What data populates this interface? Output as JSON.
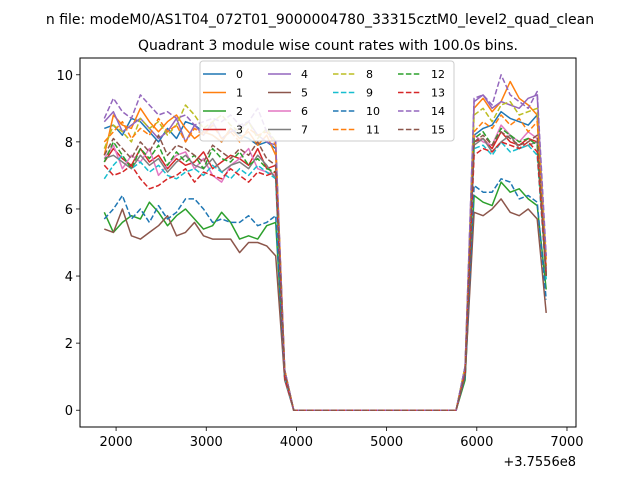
{
  "figure": {
    "suptitle": "n file: modeM0/AS1T04_072T01_9000004780_33315cztM0_level2_quad_clean",
    "title": "Quadrant 3 module wise count rates with 100.0s bins.",
    "offset_label": "+3.7556e8"
  },
  "chart_data": {
    "type": "line",
    "title": "Quadrant 3 module wise count rates with 100.0s bins.",
    "xlabel": "",
    "ylabel": "",
    "x_offset": 375560000,
    "xlim": [
      1600,
      7100
    ],
    "ylim": [
      -0.5,
      10.5
    ],
    "xticks": [
      2000,
      3000,
      4000,
      5000,
      6000,
      7000
    ],
    "yticks": [
      0,
      2,
      4,
      6,
      8,
      10
    ],
    "grid": false,
    "legend": {
      "location": "upper center",
      "columns": 4
    },
    "x": [
      1870,
      1970,
      2070,
      2170,
      2270,
      2370,
      2470,
      2570,
      2670,
      2770,
      2870,
      2970,
      3070,
      3170,
      3270,
      3370,
      3470,
      3570,
      3670,
      3770,
      3870,
      3970,
      4070,
      4170,
      4270,
      4370,
      4470,
      4570,
      4670,
      4770,
      4870,
      4970,
      5070,
      5170,
      5270,
      5370,
      5470,
      5570,
      5670,
      5770,
      5870,
      5970,
      6070,
      6170,
      6270,
      6370,
      6470,
      6570,
      6670,
      6770
    ],
    "series": [
      {
        "name": "0",
        "color": "#1f77b4",
        "dash": "solid",
        "values": [
          8.4,
          8.5,
          8.2,
          8.7,
          8.6,
          8.3,
          8.0,
          8.4,
          8.1,
          8.6,
          8.5,
          8.3,
          8.2,
          8.0,
          8.4,
          8.2,
          8.1,
          7.9,
          8.0,
          7.8,
          1.2,
          0,
          0,
          0,
          0,
          0,
          0,
          0,
          0,
          0,
          0,
          0,
          0,
          0,
          0,
          0,
          0,
          0,
          0,
          0,
          1.3,
          8.2,
          8.4,
          8.5,
          8.9,
          8.7,
          8.6,
          8.5,
          8.8,
          4.0
        ]
      },
      {
        "name": "1",
        "color": "#ff7f0e",
        "dash": "solid",
        "values": [
          7.6,
          8.8,
          8.5,
          8.4,
          9.0,
          8.6,
          8.3,
          8.6,
          8.8,
          8.4,
          8.1,
          8.3,
          8.2,
          8.0,
          8.4,
          8.1,
          8.3,
          7.9,
          8.2,
          7.6,
          1.1,
          0,
          0,
          0,
          0,
          0,
          0,
          0,
          0,
          0,
          0,
          0,
          0,
          0,
          0,
          0,
          0,
          0,
          0,
          0,
          1.2,
          9.0,
          9.3,
          8.9,
          9.2,
          9.8,
          9.3,
          9.1,
          8.8,
          4.5
        ]
      },
      {
        "name": "2",
        "color": "#2ca02c",
        "dash": "solid",
        "values": [
          5.9,
          5.3,
          5.6,
          5.8,
          5.7,
          6.2,
          5.9,
          5.5,
          5.8,
          6.0,
          5.7,
          5.4,
          5.5,
          5.9,
          5.6,
          5.1,
          5.2,
          5.1,
          5.5,
          5.6,
          1.0,
          0,
          0,
          0,
          0,
          0,
          0,
          0,
          0,
          0,
          0,
          0,
          0,
          0,
          0,
          0,
          0,
          0,
          0,
          0,
          0.9,
          6.4,
          6.2,
          6.1,
          6.8,
          6.5,
          6.6,
          6.3,
          6.1,
          3.6
        ]
      },
      {
        "name": "3",
        "color": "#d62728",
        "dash": "solid",
        "values": [
          7.4,
          7.8,
          7.5,
          7.3,
          7.8,
          7.4,
          7.6,
          7.2,
          7.5,
          7.3,
          7.4,
          7.7,
          7.2,
          7.4,
          7.6,
          7.5,
          7.3,
          7.8,
          7.2,
          7.3,
          1.1,
          0,
          0,
          0,
          0,
          0,
          0,
          0,
          0,
          0,
          0,
          0,
          0,
          0,
          0,
          0,
          0,
          0,
          0,
          0,
          1.1,
          8.0,
          8.1,
          7.8,
          8.3,
          8.0,
          7.9,
          8.1,
          8.0,
          4.0
        ]
      },
      {
        "name": "4",
        "color": "#9467bd",
        "dash": "solid",
        "values": [
          8.6,
          8.9,
          8.3,
          8.5,
          8.7,
          8.4,
          8.1,
          8.3,
          8.7,
          8.0,
          8.5,
          8.2,
          8.6,
          8.1,
          8.3,
          8.4,
          8.6,
          8.2,
          8.0,
          7.9,
          1.2,
          0,
          0,
          0,
          0,
          0,
          0,
          0,
          0,
          0,
          0,
          0,
          0,
          0,
          0,
          0,
          0,
          0,
          0,
          0,
          1.3,
          9.2,
          9.4,
          9.0,
          9.2,
          9.1,
          9.0,
          9.3,
          9.4,
          4.2
        ]
      },
      {
        "name": "5",
        "color": "#8c564b",
        "dash": "solid",
        "values": [
          5.4,
          5.3,
          6.0,
          5.2,
          5.1,
          5.3,
          5.5,
          5.8,
          5.2,
          5.3,
          5.6,
          5.2,
          5.1,
          5.1,
          5.1,
          4.7,
          5.0,
          5.0,
          4.9,
          4.6,
          0.9,
          0,
          0,
          0,
          0,
          0,
          0,
          0,
          0,
          0,
          0,
          0,
          0,
          0,
          0,
          0,
          0,
          0,
          0,
          0,
          1.0,
          5.9,
          5.8,
          6.0,
          6.3,
          5.9,
          5.8,
          6.0,
          5.7,
          2.9
        ]
      },
      {
        "name": "6",
        "color": "#e377c2",
        "dash": "solid",
        "values": [
          7.5,
          7.9,
          7.2,
          7.6,
          7.4,
          7.8,
          7.0,
          7.3,
          7.6,
          7.7,
          7.2,
          7.5,
          7.0,
          6.8,
          7.3,
          7.5,
          7.8,
          7.2,
          7.1,
          7.0,
          1.0,
          0,
          0,
          0,
          0,
          0,
          0,
          0,
          0,
          0,
          0,
          0,
          0,
          0,
          0,
          0,
          0,
          0,
          0,
          0,
          1.1,
          8.2,
          8.0,
          7.9,
          8.5,
          8.2,
          8.0,
          8.3,
          8.1,
          4.1
        ]
      },
      {
        "name": "7",
        "color": "#7f7f7f",
        "dash": "solid",
        "values": [
          7.5,
          7.6,
          7.4,
          7.2,
          7.6,
          7.3,
          7.5,
          7.1,
          7.4,
          7.6,
          7.3,
          7.2,
          7.5,
          7.1,
          7.3,
          7.4,
          7.2,
          7.6,
          7.3,
          6.9,
          1.0,
          0,
          0,
          0,
          0,
          0,
          0,
          0,
          0,
          0,
          0,
          0,
          0,
          0,
          0,
          0,
          0,
          0,
          0,
          0,
          1.1,
          7.9,
          8.1,
          7.7,
          8.0,
          8.2,
          7.8,
          7.9,
          8.0,
          4.1
        ]
      },
      {
        "name": "8",
        "color": "#bcbd22",
        "dash": "dashed",
        "values": [
          7.8,
          8.5,
          8.3,
          8.0,
          8.7,
          8.4,
          8.6,
          8.2,
          8.5,
          9.1,
          8.8,
          8.4,
          8.6,
          8.8,
          8.5,
          8.3,
          8.6,
          8.1,
          8.4,
          8.0,
          1.2,
          0,
          0,
          0,
          0,
          0,
          0,
          0,
          0,
          0,
          0,
          0,
          0,
          0,
          0,
          0,
          0,
          0,
          0,
          0,
          1.3,
          8.8,
          9.0,
          8.6,
          9.1,
          9.2,
          8.8,
          8.9,
          9.0,
          4.6
        ]
      },
      {
        "name": "9",
        "color": "#17becf",
        "dash": "dashed",
        "values": [
          6.9,
          7.3,
          7.6,
          7.2,
          7.4,
          7.1,
          7.3,
          7.0,
          6.9,
          7.1,
          7.2,
          7.0,
          7.3,
          7.1,
          6.9,
          7.2,
          7.0,
          7.3,
          7.1,
          6.9,
          1.0,
          0,
          0,
          0,
          0,
          0,
          0,
          0,
          0,
          0,
          0,
          0,
          0,
          0,
          0,
          0,
          0,
          0,
          0,
          0,
          1.1,
          7.8,
          7.9,
          7.6,
          8.0,
          7.7,
          7.8,
          7.9,
          7.6,
          3.9
        ]
      },
      {
        "name": "10",
        "color": "#1f77b4",
        "dash": "dashed",
        "values": [
          5.7,
          6.0,
          6.4,
          5.7,
          6.0,
          5.6,
          6.1,
          5.7,
          5.9,
          6.3,
          6.3,
          6.0,
          5.6,
          5.7,
          5.6,
          5.6,
          5.8,
          5.5,
          5.6,
          5.8,
          1.0,
          0,
          0,
          0,
          0,
          0,
          0,
          0,
          0,
          0,
          0,
          0,
          0,
          0,
          0,
          0,
          0,
          0,
          0,
          0,
          1.0,
          6.7,
          6.5,
          6.5,
          6.9,
          6.8,
          6.3,
          6.4,
          6.2,
          3.3
        ]
      },
      {
        "name": "11",
        "color": "#ff7f0e",
        "dash": "dashed",
        "values": [
          8.0,
          8.3,
          8.6,
          8.1,
          8.4,
          8.2,
          8.7,
          8.3,
          8.5,
          8.0,
          8.4,
          8.2,
          8.5,
          8.1,
          8.3,
          8.0,
          8.4,
          8.2,
          8.3,
          7.9,
          1.2,
          0,
          0,
          0,
          0,
          0,
          0,
          0,
          0,
          0,
          0,
          0,
          0,
          0,
          0,
          0,
          0,
          0,
          0,
          0,
          1.2,
          8.3,
          8.6,
          8.4,
          8.8,
          8.5,
          8.7,
          8.3,
          8.6,
          4.3
        ]
      },
      {
        "name": "12",
        "color": "#2ca02c",
        "dash": "dashed",
        "values": [
          7.4,
          8.0,
          7.6,
          7.2,
          7.8,
          7.5,
          7.9,
          7.3,
          7.7,
          7.4,
          7.6,
          7.2,
          7.8,
          7.5,
          7.4,
          7.7,
          7.3,
          7.5,
          7.2,
          7.1,
          1.1,
          0,
          0,
          0,
          0,
          0,
          0,
          0,
          0,
          0,
          0,
          0,
          0,
          0,
          0,
          0,
          0,
          0,
          0,
          0,
          1.1,
          8.1,
          8.3,
          7.9,
          8.4,
          8.2,
          8.0,
          8.1,
          7.9,
          4.0
        ]
      },
      {
        "name": "13",
        "color": "#d62728",
        "dash": "dashed",
        "values": [
          7.3,
          7.0,
          7.1,
          7.3,
          6.9,
          6.6,
          6.7,
          6.9,
          7.0,
          7.2,
          6.8,
          7.1,
          7.0,
          6.9,
          7.2,
          7.0,
          6.8,
          7.1,
          7.0,
          7.1,
          1.0,
          0,
          0,
          0,
          0,
          0,
          0,
          0,
          0,
          0,
          0,
          0,
          0,
          0,
          0,
          0,
          0,
          0,
          0,
          0,
          1.1,
          7.6,
          7.8,
          7.7,
          8.0,
          7.9,
          7.8,
          8.0,
          7.7,
          4.0
        ]
      },
      {
        "name": "14",
        "color": "#9467bd",
        "dash": "dashed",
        "values": [
          8.7,
          9.3,
          8.9,
          8.7,
          9.4,
          9.1,
          8.8,
          8.9,
          8.7,
          8.8,
          8.5,
          8.6,
          8.7,
          8.6,
          8.8,
          8.5,
          8.6,
          9.0,
          8.3,
          8.0,
          1.2,
          0,
          0,
          0,
          0,
          0,
          0,
          0,
          0,
          0,
          0,
          0,
          0,
          0,
          0,
          0,
          0,
          0,
          0,
          0,
          1.3,
          9.3,
          9.4,
          9.1,
          10.0,
          9.4,
          9.2,
          9.0,
          9.5,
          4.6
        ]
      },
      {
        "name": "15",
        "color": "#8c564b",
        "dash": "dashed",
        "values": [
          7.6,
          8.1,
          7.8,
          7.5,
          8.0,
          7.7,
          8.2,
          7.6,
          7.9,
          7.8,
          7.6,
          7.4,
          7.9,
          7.7,
          7.5,
          7.8,
          7.6,
          8.0,
          7.5,
          7.3,
          1.1,
          0,
          0,
          0,
          0,
          0,
          0,
          0,
          0,
          0,
          0,
          0,
          0,
          0,
          0,
          0,
          0,
          0,
          0,
          0,
          1.1,
          8.0,
          8.2,
          7.9,
          8.3,
          8.1,
          7.9,
          8.0,
          8.2,
          4.0
        ]
      }
    ]
  }
}
